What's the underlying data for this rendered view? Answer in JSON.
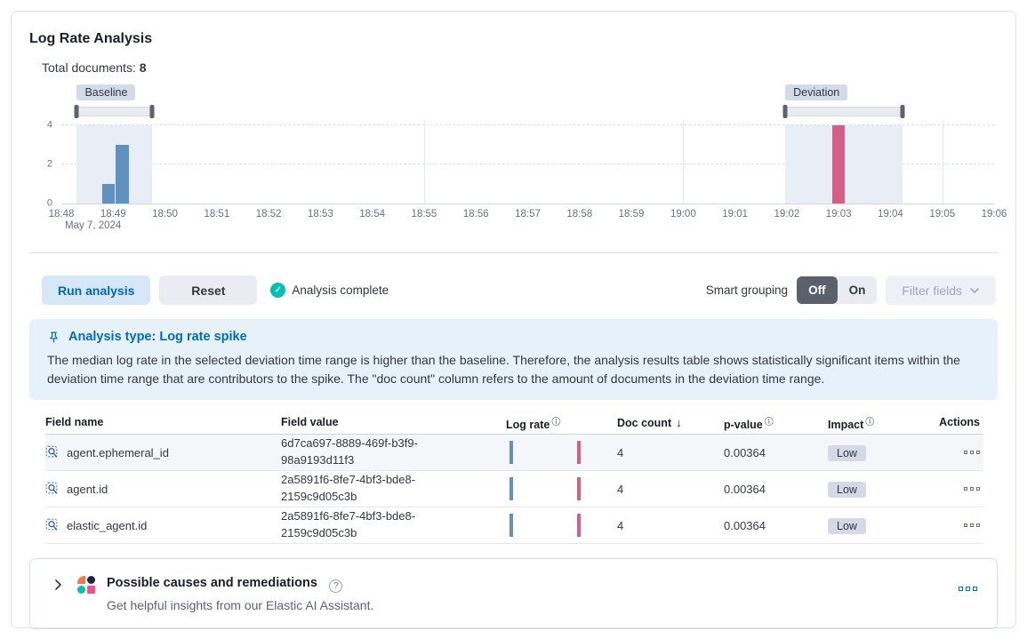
{
  "page": {
    "title": "Log Rate Analysis",
    "total_documents_label": "Total documents:",
    "total_documents_value": "8"
  },
  "chart_data": {
    "type": "bar",
    "title": "Document count histogram",
    "x_span": 18,
    "y_max_render": 4.25,
    "ylim": [
      0,
      4
    ],
    "x_ticks": [
      {
        "m": 0,
        "label": "18:48",
        "sub": "May 7, 2024"
      },
      {
        "m": 1,
        "label": "18:49"
      },
      {
        "m": 2,
        "label": "18:50"
      },
      {
        "m": 3,
        "label": "18:51"
      },
      {
        "m": 4,
        "label": "18:52"
      },
      {
        "m": 5,
        "label": "18:53"
      },
      {
        "m": 6,
        "label": "18:54"
      },
      {
        "m": 7,
        "label": "18:55"
      },
      {
        "m": 8,
        "label": "18:56"
      },
      {
        "m": 9,
        "label": "18:57"
      },
      {
        "m": 10,
        "label": "18:58"
      },
      {
        "m": 11,
        "label": "18:59"
      },
      {
        "m": 12,
        "label": "19:00"
      },
      {
        "m": 13,
        "label": "19:01"
      },
      {
        "m": 14,
        "label": "19:02"
      },
      {
        "m": 15,
        "label": "19:03"
      },
      {
        "m": 16,
        "label": "19:04"
      },
      {
        "m": 17,
        "label": "19:05"
      },
      {
        "m": 18,
        "label": "19:06"
      }
    ],
    "y_ticks": [
      {
        "v": 0,
        "label": "0"
      },
      {
        "v": 2,
        "label": "2"
      },
      {
        "v": 4,
        "label": "4"
      }
    ],
    "hgrid_values": [
      2,
      4
    ],
    "vgrid_minutes": [
      7,
      12,
      17
    ],
    "brushes": [
      {
        "name": "Baseline",
        "m0": 0.3,
        "m1": 1.75
      },
      {
        "name": "Deviation",
        "m0": 13.97,
        "m1": 16.23
      }
    ],
    "bars": [
      {
        "series": "baseline",
        "color": "#6092c0",
        "m0": 0.79,
        "m1": 1.03,
        "value": 1
      },
      {
        "series": "baseline",
        "color": "#6092c0",
        "m0": 1.05,
        "m1": 1.3,
        "value": 3
      },
      {
        "series": "deviation",
        "color": "#d65d84",
        "m0": 14.88,
        "m1": 15.11,
        "value": 4
      }
    ]
  },
  "controls": {
    "run_analysis": "Run analysis",
    "reset": "Reset",
    "status": "Analysis complete",
    "smart_grouping_label": "Smart grouping",
    "toggle_off": "Off",
    "toggle_on": "On",
    "filter_fields": "Filter fields"
  },
  "callout": {
    "title": "Analysis type: Log rate spike",
    "body": "The median log rate in the selected deviation time range is higher than the baseline. Therefore, the analysis results table shows statistically significant items within the deviation time range that are contributors to the spike. The \"doc count\" column refers to the amount of documents in the deviation time range."
  },
  "table": {
    "headers": {
      "field_name": "Field name",
      "field_value": "Field value",
      "log_rate": "Log rate",
      "doc_count": "Doc count",
      "p_value": "p-value",
      "impact": "Impact",
      "actions": "Actions"
    },
    "rows": [
      {
        "field_name": "agent.ephemeral_id",
        "field_value": "6d7ca697-8889-469f-b3f9-98a9193d11f3",
        "doc_count": "4",
        "p_value": "0.00364",
        "impact": "Low"
      },
      {
        "field_name": "agent.id",
        "field_value": "2a5891f6-8fe7-4bf3-bde8-2159c9d05c3b",
        "doc_count": "4",
        "p_value": "0.00364",
        "impact": "Low"
      },
      {
        "field_name": "elastic_agent.id",
        "field_value": "2a5891f6-8fe7-4bf3-bde8-2159c9d05c3b",
        "doc_count": "4",
        "p_value": "0.00364",
        "impact": "Low"
      }
    ]
  },
  "footer_panel": {
    "title": "Possible causes and remediations",
    "subtitle": "Get helpful insights from our Elastic AI Assistant."
  },
  "colors": {
    "baseline_bar": "#6092c0",
    "deviation_bar": "#d65d84",
    "primary": "#006bb8",
    "success": "#00bfb3",
    "callout_bg": "#e6f1fa"
  }
}
